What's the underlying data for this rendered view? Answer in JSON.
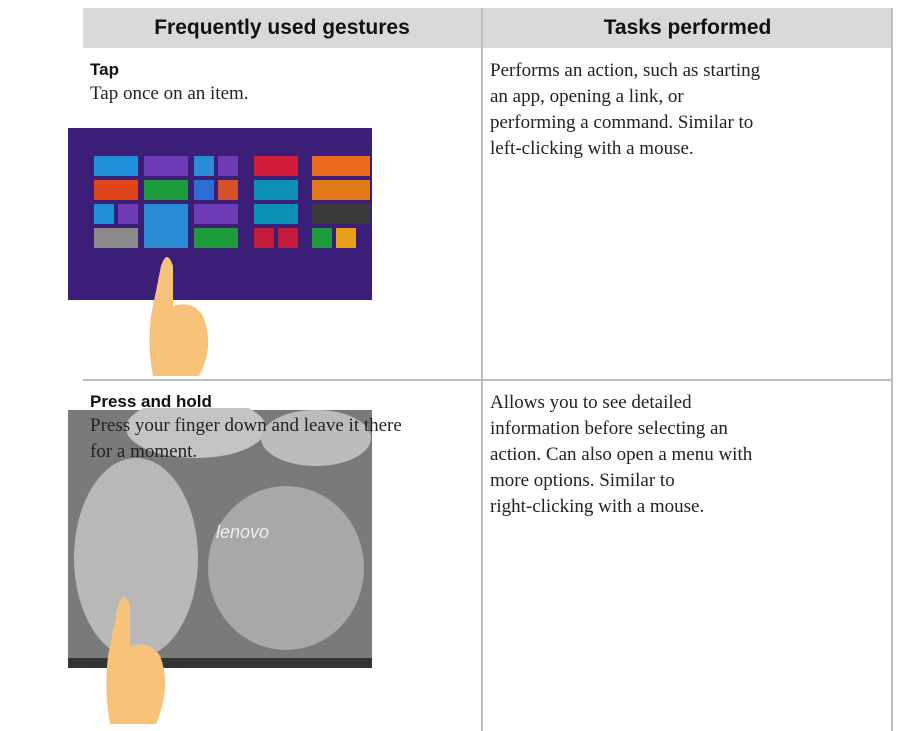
{
  "table": {
    "header": [
      "Frequently used gestures",
      "Tasks performed"
    ],
    "rows": [
      {
        "gesture": "Tap",
        "description": [
          "Tap once on an item."
        ],
        "tasks": [
          "Performs an action, such as starting",
          "an app, opening a link, or",
          "performing a command. Similar to",
          "left-clicking with a mouse."
        ]
      },
      {
        "gesture": "Press and hold",
        "description": [
          "Press your finger down and leave it there",
          "for a moment."
        ],
        "tasks": [
          "Allows you to see detailed",
          "information before selecting an",
          "action. Can also open a menu with",
          "more options. Similar to",
          "right-clicking with a mouse."
        ],
        "image_text": "lenovo"
      }
    ]
  }
}
